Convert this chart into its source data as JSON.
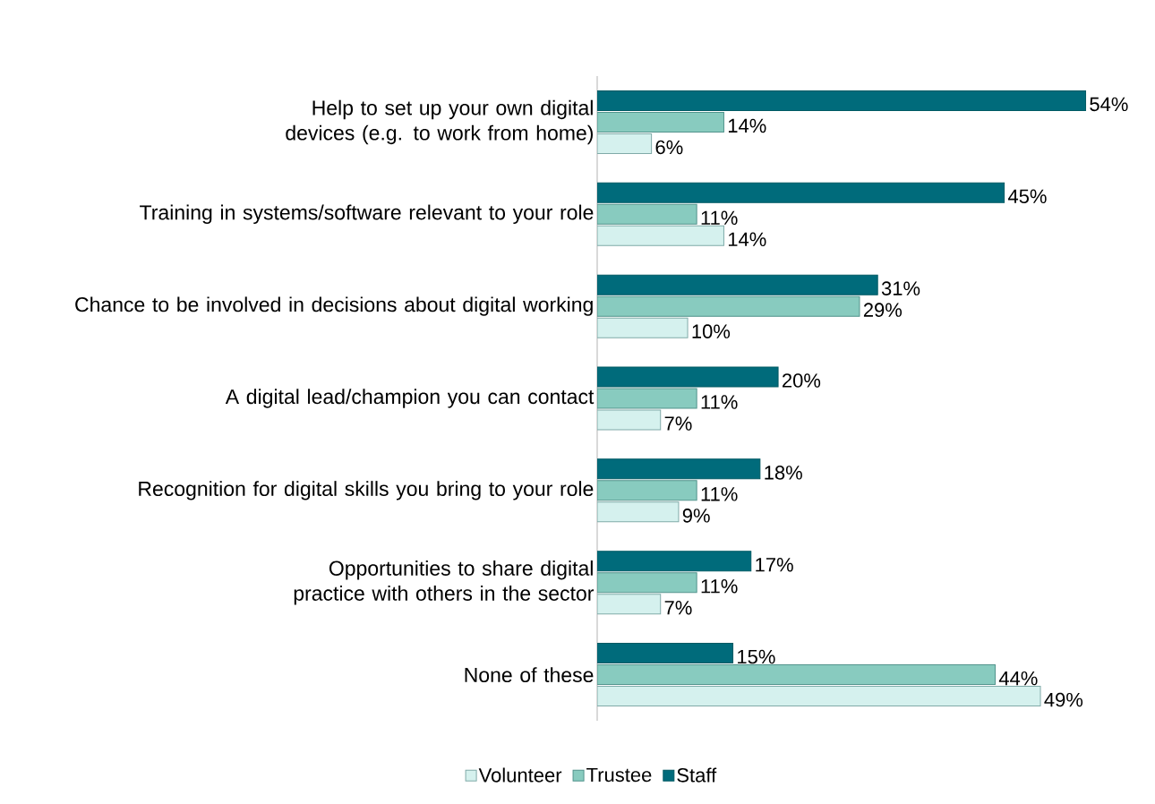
{
  "chart_data": {
    "type": "bar",
    "orientation": "horizontal",
    "legend": "bottom",
    "grid": false,
    "categories": [
      "Help to set up your own digital devices (e.g. to work from home)",
      "Training in systems/software relevant to your role",
      "Chance to be involved in decisions about digital working",
      "A digital lead/champion you can contact",
      "Recognition for digital skills you bring to your role",
      "Opportunities to share digital practice with others in the sector",
      "None of these"
    ],
    "series": [
      {
        "name": "Volunteer",
        "color": "#d5f1ee",
        "values": [
          6,
          14,
          10,
          7,
          9,
          7,
          49
        ],
        "value_labels": [
          "6%",
          "14%",
          "10%",
          "7%",
          "9%",
          "7%",
          "49%"
        ]
      },
      {
        "name": "Trustee",
        "color": "#88cbbf",
        "values": [
          14,
          11,
          29,
          11,
          11,
          11,
          44
        ],
        "value_labels": [
          "14%",
          "11%",
          "29%",
          "11%",
          "11%",
          "11%",
          "44%"
        ]
      },
      {
        "name": "Staff",
        "color": "#006b7b",
        "values": [
          54,
          45,
          31,
          20,
          18,
          17,
          15
        ],
        "value_labels": [
          "54%",
          "45%",
          "31%",
          "20%",
          "18%",
          "17%",
          "15%"
        ]
      }
    ]
  }
}
